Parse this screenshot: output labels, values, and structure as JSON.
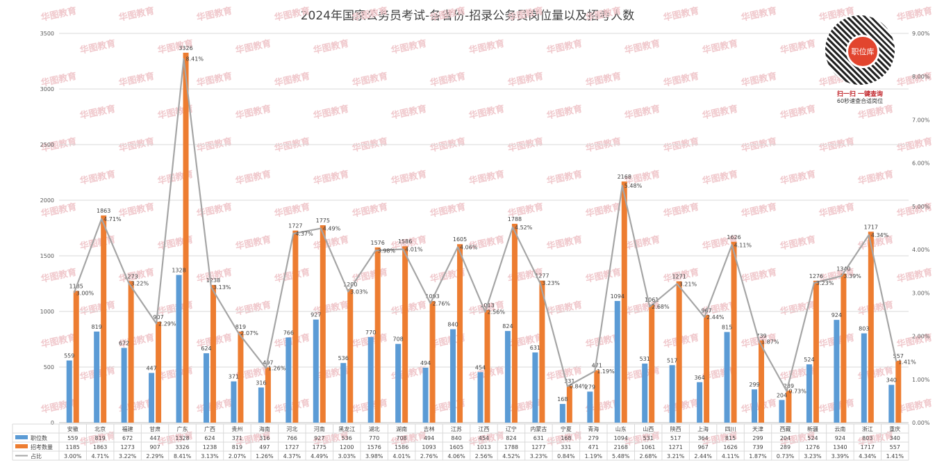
{
  "chart_data": {
    "type": "bar",
    "title": "2024年国家公务员考试-各省份-招录公务员岗位量以及招考人数",
    "categories": [
      "安徽",
      "北京",
      "福建",
      "甘肃",
      "广东",
      "广西",
      "贵州",
      "海南",
      "河北",
      "河南",
      "黑龙江",
      "湖北",
      "湖南",
      "吉林",
      "江苏",
      "江西",
      "辽宁",
      "内蒙古",
      "宁夏",
      "青海",
      "山东",
      "山西",
      "陕西",
      "上海",
      "四川",
      "天津",
      "西藏",
      "新疆",
      "云南",
      "浙江",
      "重庆"
    ],
    "series": [
      {
        "name": "职位数",
        "type": "bar",
        "axis": "left",
        "color": "#5b9bd5",
        "values": [
          559,
          819,
          672,
          447,
          1328,
          624,
          371,
          316,
          766,
          927,
          536,
          770,
          708,
          494,
          840,
          454,
          824,
          631,
          168,
          279,
          1094,
          531,
          517,
          364,
          815,
          299,
          204,
          524,
          924,
          803,
          340
        ]
      },
      {
        "name": "招考数量",
        "type": "bar",
        "axis": "left",
        "color": "#ed7d31",
        "values": [
          1185,
          1863,
          1273,
          907,
          3326,
          1238,
          819,
          497,
          1727,
          1775,
          1200,
          1576,
          1586,
          1093,
          1605,
          1013,
          1788,
          1277,
          331,
          471,
          2168,
          1061,
          1271,
          967,
          1626,
          739,
          289,
          1276,
          1340,
          1717,
          557
        ]
      },
      {
        "name": "占比",
        "type": "line",
        "axis": "right",
        "color": "#a5a5a5",
        "values": [
          3.0,
          4.71,
          3.22,
          2.29,
          8.41,
          3.13,
          2.07,
          1.26,
          4.37,
          4.49,
          3.03,
          3.98,
          4.01,
          2.76,
          4.06,
          2.56,
          4.52,
          3.23,
          0.84,
          1.19,
          5.48,
          2.68,
          3.21,
          2.44,
          4.11,
          1.87,
          0.73,
          3.23,
          3.39,
          4.34,
          1.41
        ]
      }
    ],
    "line_labels": [
      "3.00%",
      "4.71%",
      "3.22%",
      "2.29%",
      "8.41%",
      "3.13%",
      "2.07%",
      "1.26%",
      "4.37%",
      "4.49%",
      "3.03%",
      "3.98%",
      "4.01%",
      "2.76%",
      "4.06%",
      "2.56%",
      "4.52%",
      "3.23%",
      "0.84%",
      "1.19%",
      "5.48%",
      "2.68%",
      "3.21%",
      "2.44%",
      "4.11%",
      "1.87%",
      "0.73%",
      "3.23%",
      "3.39%",
      "4.34%",
      "1.41%"
    ],
    "ylim": [
      0,
      3500
    ],
    "yticks": [
      "0",
      "500",
      "1000",
      "1500",
      "2000",
      "2500",
      "3000",
      "3500"
    ],
    "y2lim": [
      0,
      9
    ],
    "y2ticks": [
      "0.00%",
      "1.00%",
      "2.00%",
      "3.00%",
      "4.00%",
      "5.00%",
      "6.00%",
      "7.00%",
      "8.00%",
      "9.00%"
    ],
    "grid": true,
    "legend": "data-table-below"
  },
  "watermark": "华图教育",
  "qr": {
    "center_label": "职位库",
    "line1": "扫一扫  一键查询",
    "line2": "60秒速查合适岗位"
  }
}
